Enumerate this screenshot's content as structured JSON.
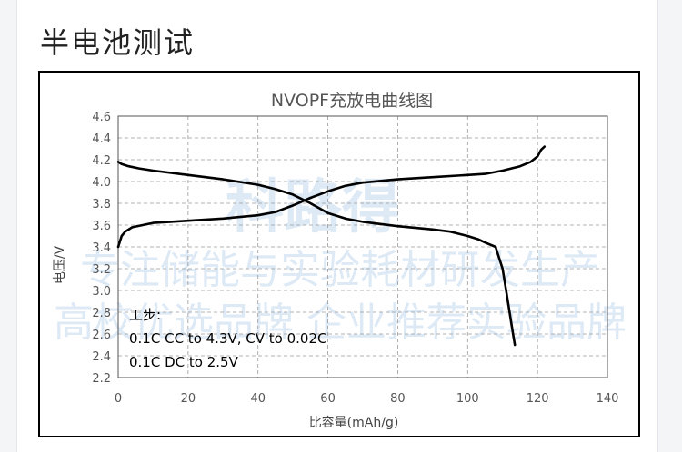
{
  "page": {
    "heading": "半电池测试"
  },
  "chart_data": {
    "type": "line",
    "title": "NVOPF充放电曲线图",
    "xlabel": "比容量(mAh/g)",
    "ylabel": "电压/V",
    "xlim": [
      0,
      140
    ],
    "ylim": [
      2.2,
      4.6
    ],
    "xticks": [
      "0",
      "20",
      "40",
      "60",
      "80",
      "100",
      "120",
      "140"
    ],
    "yticks": [
      "2.2",
      "2.4",
      "2.6",
      "2.8",
      "3.0",
      "3.2",
      "3.4",
      "3.6",
      "3.8",
      "4.0",
      "4.2",
      "4.4",
      "4.6"
    ],
    "grid": true,
    "series": [
      {
        "kind": "charge",
        "points": [
          [
            0,
            3.4
          ],
          [
            0.5,
            3.45
          ],
          [
            1,
            3.5
          ],
          [
            2,
            3.54
          ],
          [
            4,
            3.58
          ],
          [
            7,
            3.6
          ],
          [
            10,
            3.62
          ],
          [
            15,
            3.63
          ],
          [
            20,
            3.64
          ],
          [
            30,
            3.66
          ],
          [
            40,
            3.69
          ],
          [
            45,
            3.72
          ],
          [
            50,
            3.78
          ],
          [
            55,
            3.85
          ],
          [
            60,
            3.91
          ],
          [
            65,
            3.96
          ],
          [
            70,
            3.99
          ],
          [
            80,
            4.02
          ],
          [
            90,
            4.04
          ],
          [
            100,
            4.06
          ],
          [
            105,
            4.07
          ],
          [
            110,
            4.1
          ],
          [
            115,
            4.14
          ],
          [
            118,
            4.18
          ],
          [
            120,
            4.23
          ],
          [
            121,
            4.29
          ],
          [
            122,
            4.32
          ]
        ]
      },
      {
        "kind": "discharge",
        "points": [
          [
            0,
            4.18
          ],
          [
            1,
            4.16
          ],
          [
            3,
            4.14
          ],
          [
            6,
            4.12
          ],
          [
            10,
            4.1
          ],
          [
            20,
            4.06
          ],
          [
            30,
            4.02
          ],
          [
            40,
            3.97
          ],
          [
            45,
            3.93
          ],
          [
            50,
            3.88
          ],
          [
            55,
            3.8
          ],
          [
            60,
            3.71
          ],
          [
            65,
            3.66
          ],
          [
            70,
            3.63
          ],
          [
            80,
            3.59
          ],
          [
            90,
            3.56
          ],
          [
            95,
            3.54
          ],
          [
            100,
            3.5
          ],
          [
            103,
            3.47
          ],
          [
            105,
            3.44
          ],
          [
            108,
            3.4
          ],
          [
            110,
            3.2
          ],
          [
            111,
            3.0
          ],
          [
            112,
            2.8
          ],
          [
            112.5,
            2.7
          ],
          [
            113,
            2.6
          ],
          [
            113.5,
            2.5
          ]
        ]
      }
    ],
    "annotations": [
      "工步:",
      "0.1C CC to 4.3V, CV to 0.02C",
      "0.1C DC to 2.5V"
    ],
    "watermark": [
      "科路得",
      "专注储能与实验耗材研发生产",
      "高校优选品牌 企业推荐实验品牌"
    ]
  }
}
